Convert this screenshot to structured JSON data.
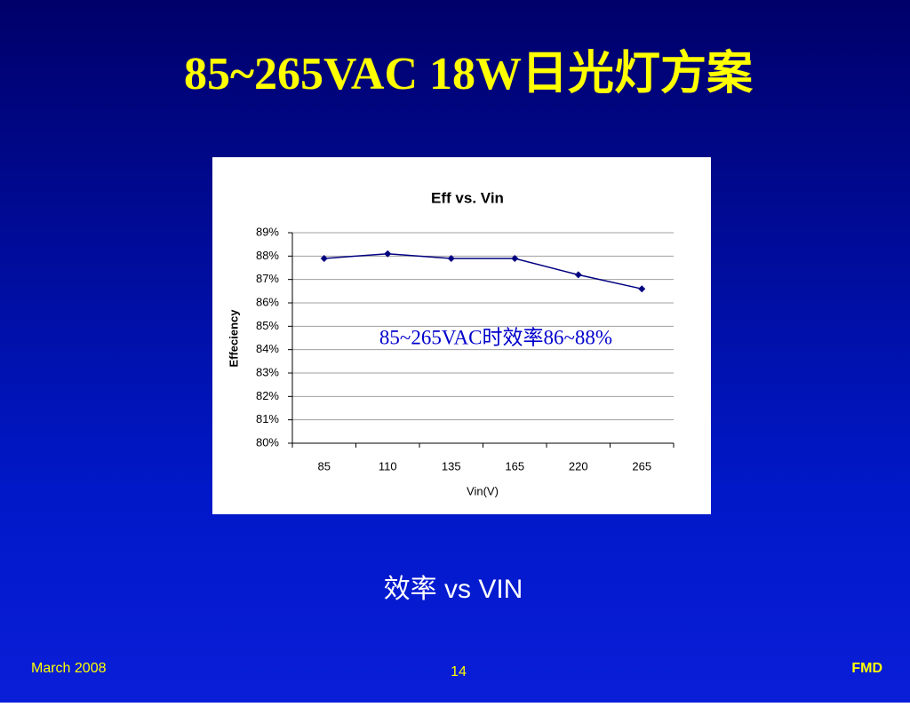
{
  "slide_title": "85~265VAC 18W日光灯方案",
  "chart_data": {
    "type": "line",
    "title": "Eff vs. Vin",
    "x_label": "Vin(V)",
    "y_label": "Effeciency",
    "categories": [
      "85",
      "110",
      "135",
      "165",
      "220",
      "265"
    ],
    "values": [
      87.9,
      88.1,
      87.9,
      87.9,
      87.2,
      86.6
    ],
    "color": "#000080",
    "ylim": [
      80,
      89
    ],
    "yticks": [
      {
        "value": 80,
        "label": "80%"
      },
      {
        "value": 81,
        "label": "81%"
      },
      {
        "value": 82,
        "label": "82%"
      },
      {
        "value": 83,
        "label": "83%"
      },
      {
        "value": 84,
        "label": "84%"
      },
      {
        "value": 85,
        "label": "85%"
      },
      {
        "value": 86,
        "label": "86%"
      },
      {
        "value": 87,
        "label": "87%"
      },
      {
        "value": 88,
        "label": "88%"
      },
      {
        "value": 89,
        "label": "89%"
      }
    ],
    "grid": true,
    "annotation": "85~265VAC时效率86~88%"
  },
  "caption": "效率 vs VIN",
  "footer": {
    "date": "March 2008",
    "page": "14",
    "org": "FMD"
  }
}
